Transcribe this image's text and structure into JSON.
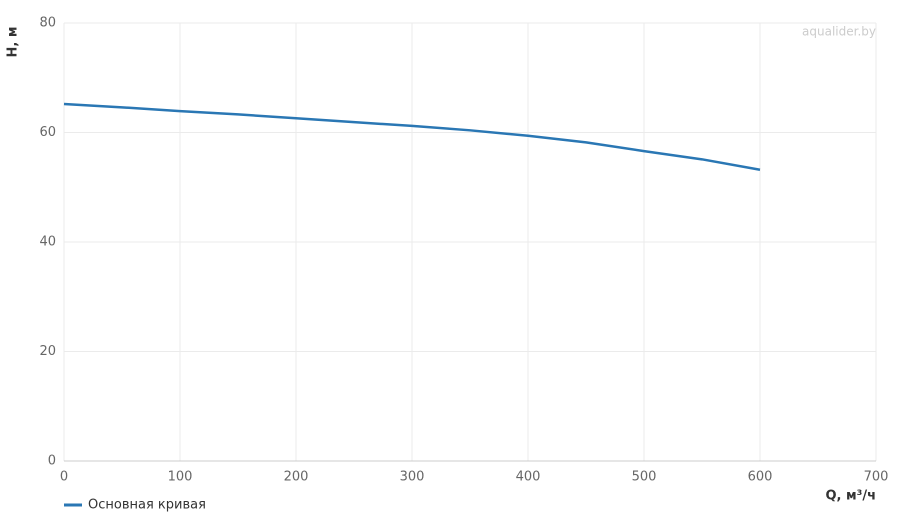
{
  "chart_data": {
    "type": "line",
    "watermark": "aqualider.by",
    "xlabel": "Q, м³/ч",
    "ylabel": "H, м",
    "x": [
      0,
      50,
      100,
      150,
      200,
      250,
      300,
      350,
      400,
      450,
      500,
      550,
      600
    ],
    "series": [
      {
        "name": "Основная кривая",
        "color": "#2a77b4",
        "values": [
          65.2,
          64.6,
          63.9,
          63.3,
          62.6,
          61.9,
          61.2,
          60.4,
          59.4,
          58.2,
          56.6,
          55.1,
          53.2
        ]
      }
    ],
    "xlim": [
      0,
      700
    ],
    "xticks": [
      0,
      100,
      200,
      300,
      400,
      500,
      600,
      700
    ],
    "ylim": [
      0,
      80
    ],
    "yticks": [
      0,
      20,
      40,
      60,
      80
    ],
    "grid": true,
    "legend": "bottom-left"
  }
}
